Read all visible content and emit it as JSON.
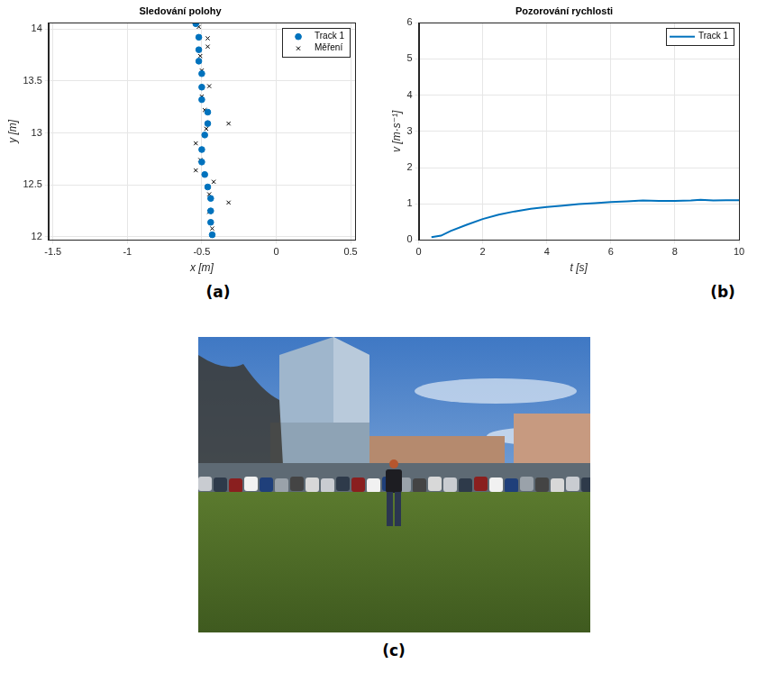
{
  "chart_data": [
    {
      "type": "scatter",
      "panel": "(a)",
      "title": "Sledování polohy",
      "x_label": "x [m]",
      "y_label": "y [m]",
      "xlim": [
        -1.53,
        0.53
      ],
      "xticks": [
        -1.5,
        -1,
        -0.5,
        0,
        0.5
      ],
      "ylim": [
        11.97,
        14.06
      ],
      "yticks": [
        12,
        12.5,
        13,
        13.5,
        14
      ],
      "grid": true,
      "legend": "top-right",
      "series": [
        {
          "name": "Track 1",
          "color": "#0072bd",
          "marker": "circle",
          "x": [
            -0.54,
            -0.52,
            -0.52,
            -0.52,
            -0.5,
            -0.5,
            -0.5,
            -0.46,
            -0.46,
            -0.48,
            -0.5,
            -0.5,
            -0.48,
            -0.46,
            -0.44,
            -0.44,
            -0.44,
            -0.43
          ],
          "values": [
            14.05,
            13.92,
            13.8,
            13.69,
            13.57,
            13.44,
            13.32,
            13.2,
            13.09,
            12.98,
            12.84,
            12.72,
            12.6,
            12.48,
            12.37,
            12.25,
            12.14,
            12.02
          ]
        },
        {
          "name": "Měření",
          "color": "#000000",
          "marker": "cross",
          "x": [
            -0.52,
            -0.46,
            -0.46,
            -0.51,
            -0.5,
            -0.45,
            -0.5,
            -0.48,
            -0.32,
            -0.47,
            -0.54,
            -0.51,
            -0.54,
            -0.42,
            -0.45,
            -0.32,
            -0.45,
            -0.43
          ],
          "values": [
            14.02,
            13.91,
            13.83,
            13.74,
            13.6,
            13.45,
            13.35,
            13.22,
            13.09,
            13.04,
            12.9,
            12.74,
            12.64,
            12.53,
            12.41,
            12.33,
            12.24,
            12.08
          ]
        }
      ]
    },
    {
      "type": "line",
      "panel": "(b)",
      "title": "Pozorování rychlosti",
      "x_label": "t [s]",
      "y_label": "v [m·s⁻¹]",
      "xlim": [
        0,
        10
      ],
      "xticks": [
        0,
        2,
        4,
        6,
        8,
        10
      ],
      "ylim": [
        0,
        6
      ],
      "yticks": [
        0,
        1,
        2,
        3,
        4,
        5,
        6
      ],
      "grid": true,
      "legend": "top-right",
      "series": [
        {
          "name": "Track 1",
          "color": "#0072bd",
          "marker": "none",
          "line_style": "solid",
          "x": [
            0.4,
            0.7,
            1,
            1.5,
            2,
            2.5,
            3,
            3.5,
            4,
            4.5,
            5,
            5.5,
            6,
            6.5,
            7,
            7.5,
            8,
            8.5,
            8.8,
            9.2,
            9.6,
            10
          ],
          "values": [
            0.08,
            0.12,
            0.25,
            0.42,
            0.58,
            0.7,
            0.79,
            0.86,
            0.91,
            0.95,
            0.99,
            1.02,
            1.05,
            1.07,
            1.09,
            1.08,
            1.08,
            1.09,
            1.11,
            1.09,
            1.1,
            1.1
          ]
        }
      ]
    }
  ],
  "image": {
    "panel": "(c)"
  }
}
